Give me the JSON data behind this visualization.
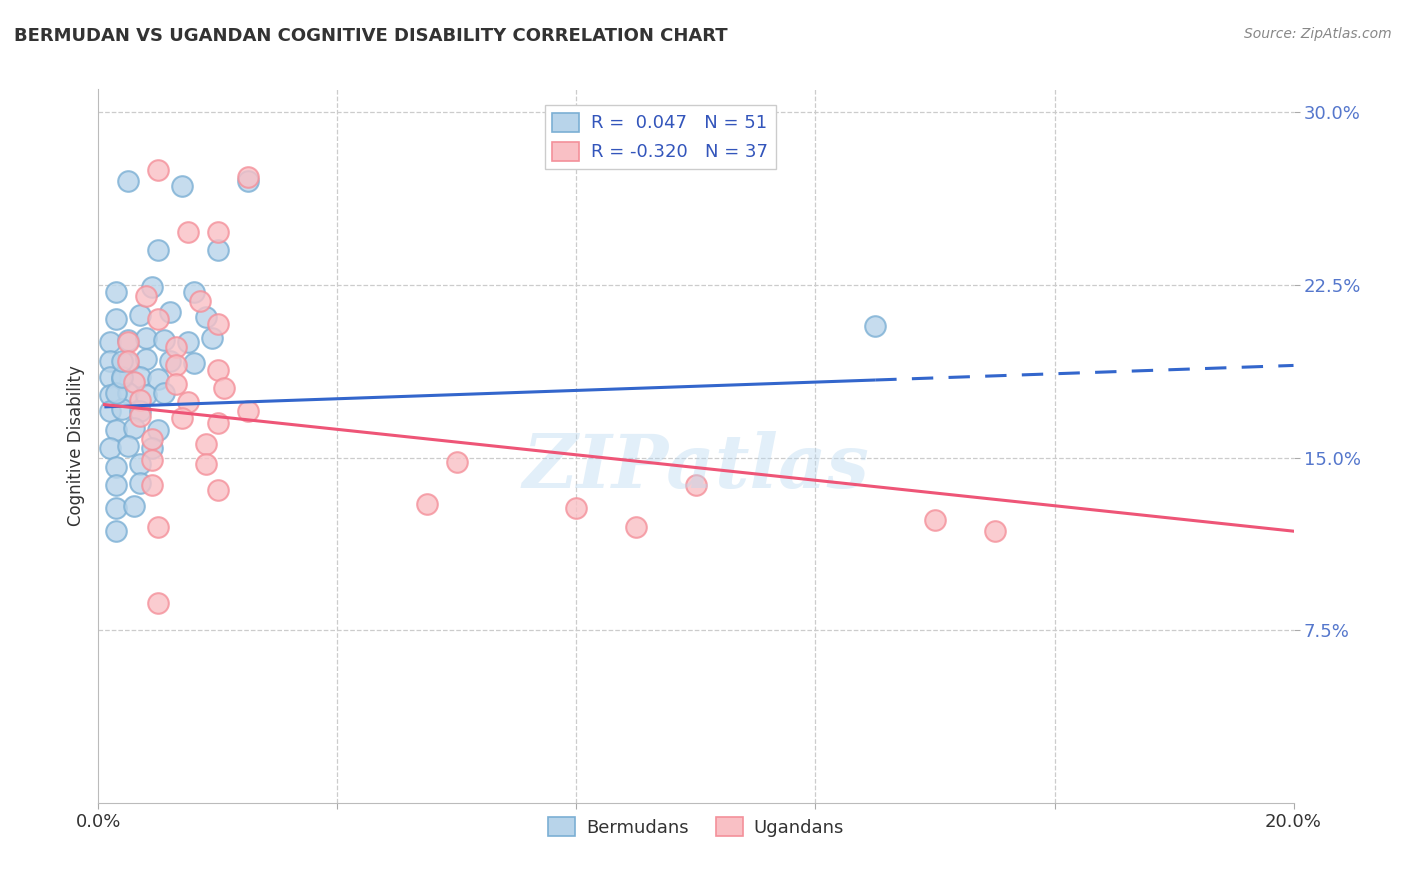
{
  "title": "BERMUDAN VS UGANDAN COGNITIVE DISABILITY CORRELATION CHART",
  "source": "Source: ZipAtlas.com",
  "ylabel": "Cognitive Disability",
  "watermark": "ZIPatlas",
  "xlim": [
    0.0,
    0.2
  ],
  "ylim": [
    0.0,
    0.31
  ],
  "yticks": [
    0.075,
    0.15,
    0.225,
    0.3
  ],
  "ytick_labels": [
    "7.5%",
    "15.0%",
    "22.5%",
    "30.0%"
  ],
  "xtick_vals": [
    0.0,
    0.04,
    0.08,
    0.12,
    0.16,
    0.2
  ],
  "bermuda_R": 0.047,
  "bermuda_N": 51,
  "uganda_R": -0.32,
  "uganda_N": 37,
  "bermuda_color": "#7BAFD4",
  "bermuda_fill": "#B8D4EA",
  "uganda_color": "#F4909A",
  "uganda_fill": "#F9C0C5",
  "line_blue": "#3366CC",
  "line_pink": "#EE5577",
  "blue_line_start_x": 0.001,
  "blue_line_start_y": 0.172,
  "blue_line_solid_end_x": 0.13,
  "blue_line_end_x": 0.2,
  "blue_line_end_y": 0.19,
  "pink_line_start_x": 0.001,
  "pink_line_start_y": 0.173,
  "pink_line_end_x": 0.2,
  "pink_line_end_y": 0.118,
  "bermuda_points": [
    [
      0.005,
      0.27
    ],
    [
      0.014,
      0.268
    ],
    [
      0.025,
      0.27
    ],
    [
      0.01,
      0.24
    ],
    [
      0.02,
      0.24
    ],
    [
      0.003,
      0.222
    ],
    [
      0.009,
      0.224
    ],
    [
      0.016,
      0.222
    ],
    [
      0.003,
      0.21
    ],
    [
      0.007,
      0.212
    ],
    [
      0.012,
      0.213
    ],
    [
      0.018,
      0.211
    ],
    [
      0.002,
      0.2
    ],
    [
      0.005,
      0.201
    ],
    [
      0.008,
      0.202
    ],
    [
      0.011,
      0.201
    ],
    [
      0.015,
      0.2
    ],
    [
      0.019,
      0.202
    ],
    [
      0.002,
      0.192
    ],
    [
      0.005,
      0.191
    ],
    [
      0.008,
      0.193
    ],
    [
      0.012,
      0.192
    ],
    [
      0.016,
      0.191
    ],
    [
      0.002,
      0.185
    ],
    [
      0.004,
      0.184
    ],
    [
      0.007,
      0.185
    ],
    [
      0.01,
      0.184
    ],
    [
      0.002,
      0.177
    ],
    [
      0.005,
      0.178
    ],
    [
      0.008,
      0.177
    ],
    [
      0.011,
      0.178
    ],
    [
      0.002,
      0.17
    ],
    [
      0.004,
      0.171
    ],
    [
      0.007,
      0.17
    ],
    [
      0.003,
      0.162
    ],
    [
      0.006,
      0.163
    ],
    [
      0.01,
      0.162
    ],
    [
      0.002,
      0.154
    ],
    [
      0.005,
      0.155
    ],
    [
      0.009,
      0.154
    ],
    [
      0.003,
      0.146
    ],
    [
      0.007,
      0.147
    ],
    [
      0.003,
      0.138
    ],
    [
      0.007,
      0.139
    ],
    [
      0.003,
      0.128
    ],
    [
      0.006,
      0.129
    ],
    [
      0.003,
      0.118
    ],
    [
      0.003,
      0.178
    ],
    [
      0.004,
      0.185
    ],
    [
      0.004,
      0.192
    ],
    [
      0.13,
      0.207
    ]
  ],
  "uganda_points": [
    [
      0.01,
      0.275
    ],
    [
      0.025,
      0.272
    ],
    [
      0.015,
      0.248
    ],
    [
      0.02,
      0.248
    ],
    [
      0.008,
      0.22
    ],
    [
      0.017,
      0.218
    ],
    [
      0.01,
      0.21
    ],
    [
      0.02,
      0.208
    ],
    [
      0.005,
      0.2
    ],
    [
      0.013,
      0.198
    ],
    [
      0.005,
      0.192
    ],
    [
      0.013,
      0.19
    ],
    [
      0.02,
      0.188
    ],
    [
      0.006,
      0.183
    ],
    [
      0.013,
      0.182
    ],
    [
      0.021,
      0.18
    ],
    [
      0.007,
      0.175
    ],
    [
      0.015,
      0.174
    ],
    [
      0.007,
      0.168
    ],
    [
      0.014,
      0.167
    ],
    [
      0.02,
      0.165
    ],
    [
      0.009,
      0.158
    ],
    [
      0.018,
      0.156
    ],
    [
      0.009,
      0.149
    ],
    [
      0.018,
      0.147
    ],
    [
      0.009,
      0.138
    ],
    [
      0.02,
      0.136
    ],
    [
      0.01,
      0.12
    ],
    [
      0.01,
      0.087
    ],
    [
      0.055,
      0.13
    ],
    [
      0.08,
      0.128
    ],
    [
      0.1,
      0.138
    ],
    [
      0.14,
      0.123
    ],
    [
      0.06,
      0.148
    ],
    [
      0.09,
      0.12
    ],
    [
      0.15,
      0.118
    ],
    [
      0.025,
      0.17
    ]
  ]
}
